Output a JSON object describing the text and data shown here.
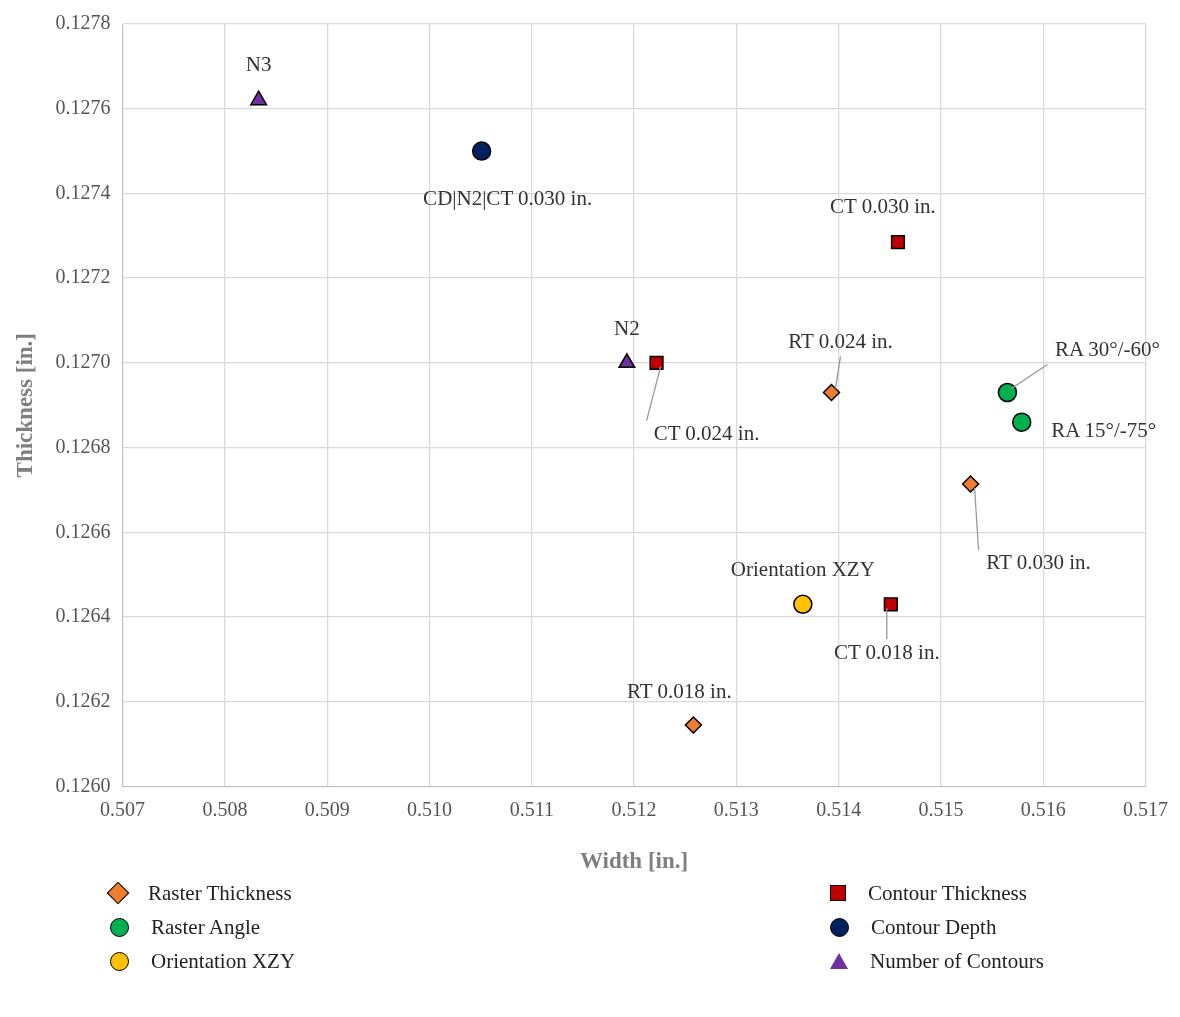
{
  "chart_data": {
    "type": "scatter",
    "xlabel": "Width [in.]",
    "ylabel": "Thickness [in.]",
    "xlim": [
      0.507,
      0.517
    ],
    "xticks": [
      {
        "value": 0.507,
        "label": "0.507"
      },
      {
        "value": 0.508,
        "label": "0.508"
      },
      {
        "value": 0.509,
        "label": "0.509"
      },
      {
        "value": 0.51,
        "label": "0.510"
      },
      {
        "value": 0.511,
        "label": "0.511"
      },
      {
        "value": 0.512,
        "label": "0.512"
      },
      {
        "value": 0.513,
        "label": "0.513"
      },
      {
        "value": 0.514,
        "label": "0.514"
      },
      {
        "value": 0.515,
        "label": "0.515"
      },
      {
        "value": 0.516,
        "label": "0.516"
      },
      {
        "value": 0.517,
        "label": "0.517"
      }
    ],
    "ylim": [
      0.126,
      0.1278
    ],
    "yticks": [
      {
        "value": 0.126,
        "label": "0.1260"
      },
      {
        "value": 0.1262,
        "label": "0.1262"
      },
      {
        "value": 0.1264,
        "label": "0.1264"
      },
      {
        "value": 0.1266,
        "label": "0.1266"
      },
      {
        "value": 0.1268,
        "label": "0.1268"
      },
      {
        "value": 0.127,
        "label": "0.1270"
      },
      {
        "value": 0.1272,
        "label": "0.1272"
      },
      {
        "value": 0.1274,
        "label": "0.1274"
      },
      {
        "value": 0.1276,
        "label": "0.1276"
      },
      {
        "value": 0.1278,
        "label": "0.1278"
      }
    ],
    "grid": true,
    "legend": "bottom",
    "series": [
      {
        "name": "Raster Thickness",
        "color": "#ed7d31",
        "marker": "diamond",
        "x": [
          0.51258,
          0.51393,
          0.51529
        ],
        "values": [
          0.126145,
          0.12693,
          0.126714
        ]
      },
      {
        "name": "Raster Angle",
        "color": "#00b050",
        "marker": "circle",
        "x": [
          0.51565,
          0.51579
        ],
        "values": [
          0.12693,
          0.12686
        ]
      },
      {
        "name": "Orientation XZY",
        "color": "#ffc000",
        "marker": "circle",
        "x": [
          0.51365
        ],
        "values": [
          0.12643
        ]
      },
      {
        "name": "Contour Thickness",
        "color": "#c00000",
        "marker": "square",
        "x": [
          0.51451,
          0.51222,
          0.51458
        ],
        "values": [
          0.12643,
          0.127,
          0.127285
        ]
      },
      {
        "name": "Contour Depth",
        "color": "#002060",
        "marker": "circle",
        "x": [
          0.51051
        ],
        "values": [
          0.1275
        ]
      },
      {
        "name": "Number of Contours",
        "color": "#7030a0",
        "marker": "triangle",
        "x": [
          0.51193,
          0.50833
        ],
        "values": [
          0.127,
          0.12762
        ]
      }
    ],
    "annotations": [
      {
        "text": "N3",
        "x": 0.50833,
        "y": 0.12762
      },
      {
        "text": "CD|N2|CT 0.030 in.",
        "x": 0.51051,
        "y": 0.1275
      },
      {
        "text": "CT 0.030 in.",
        "x": 0.51458,
        "y": 0.127285
      },
      {
        "text": "N2",
        "x": 0.51193,
        "y": 0.127
      },
      {
        "text": "CT 0.024 in.",
        "x": 0.51222,
        "y": 0.127
      },
      {
        "text": "RT 0.024 in.",
        "x": 0.51393,
        "y": 0.12693
      },
      {
        "text": "RA 30°/-60°",
        "x": 0.51565,
        "y": 0.12693
      },
      {
        "text": "RA 15°/-75°",
        "x": 0.51579,
        "y": 0.12686
      },
      {
        "text": "RT 0.030 in.",
        "x": 0.51529,
        "y": 0.126714
      },
      {
        "text": "Orientation XZY",
        "x": 0.51365,
        "y": 0.12643
      },
      {
        "text": "CT 0.018 in.",
        "x": 0.51451,
        "y": 0.12643
      },
      {
        "text": "RT 0.018 in.",
        "x": 0.51258,
        "y": 0.126145
      }
    ]
  }
}
